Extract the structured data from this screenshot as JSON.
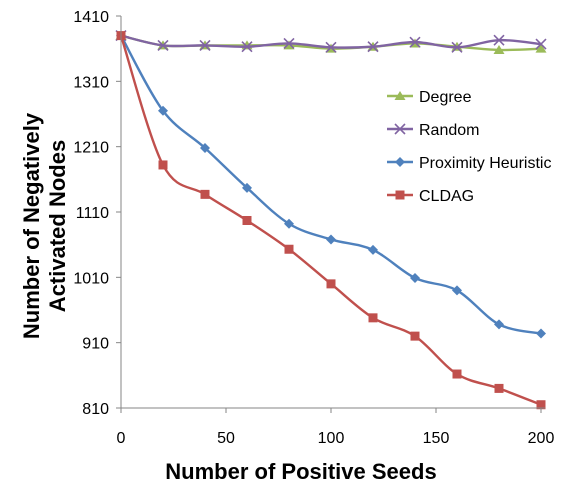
{
  "chart_data": {
    "type": "line",
    "title": "",
    "xlabel": "Number of Positive Seeds",
    "ylabel": [
      "Number of Negatively",
      "Activated Nodes"
    ],
    "xlim": [
      0,
      200
    ],
    "ylim": [
      810,
      1410
    ],
    "x_ticks": [
      0,
      50,
      100,
      150,
      200
    ],
    "y_ticks": [
      810,
      910,
      1010,
      1110,
      1210,
      1310,
      1410
    ],
    "grid": false,
    "legend_position": "right",
    "x": [
      0,
      20,
      40,
      60,
      80,
      100,
      120,
      140,
      160,
      180,
      200
    ],
    "series": [
      {
        "name": "Degree",
        "color": "#9BBB59",
        "marker": "triangle",
        "values": [
          1380,
          1365,
          1365,
          1365,
          1365,
          1360,
          1363,
          1368,
          1363,
          1358,
          1360
        ]
      },
      {
        "name": "Random",
        "color": "#8064A2",
        "marker": "x",
        "values": [
          1380,
          1365,
          1365,
          1363,
          1368,
          1362,
          1363,
          1370,
          1362,
          1373,
          1367
        ]
      },
      {
        "name": "Proximity Heuristic",
        "color": "#4F81BD",
        "marker": "diamond",
        "values": [
          1380,
          1265,
          1208,
          1147,
          1092,
          1068,
          1052,
          1009,
          990,
          938,
          924
        ]
      },
      {
        "name": "CLDAG",
        "color": "#C0504D",
        "marker": "square",
        "values": [
          1380,
          1182,
          1137,
          1097,
          1053,
          1000,
          948,
          920,
          862,
          840,
          815
        ]
      }
    ]
  }
}
